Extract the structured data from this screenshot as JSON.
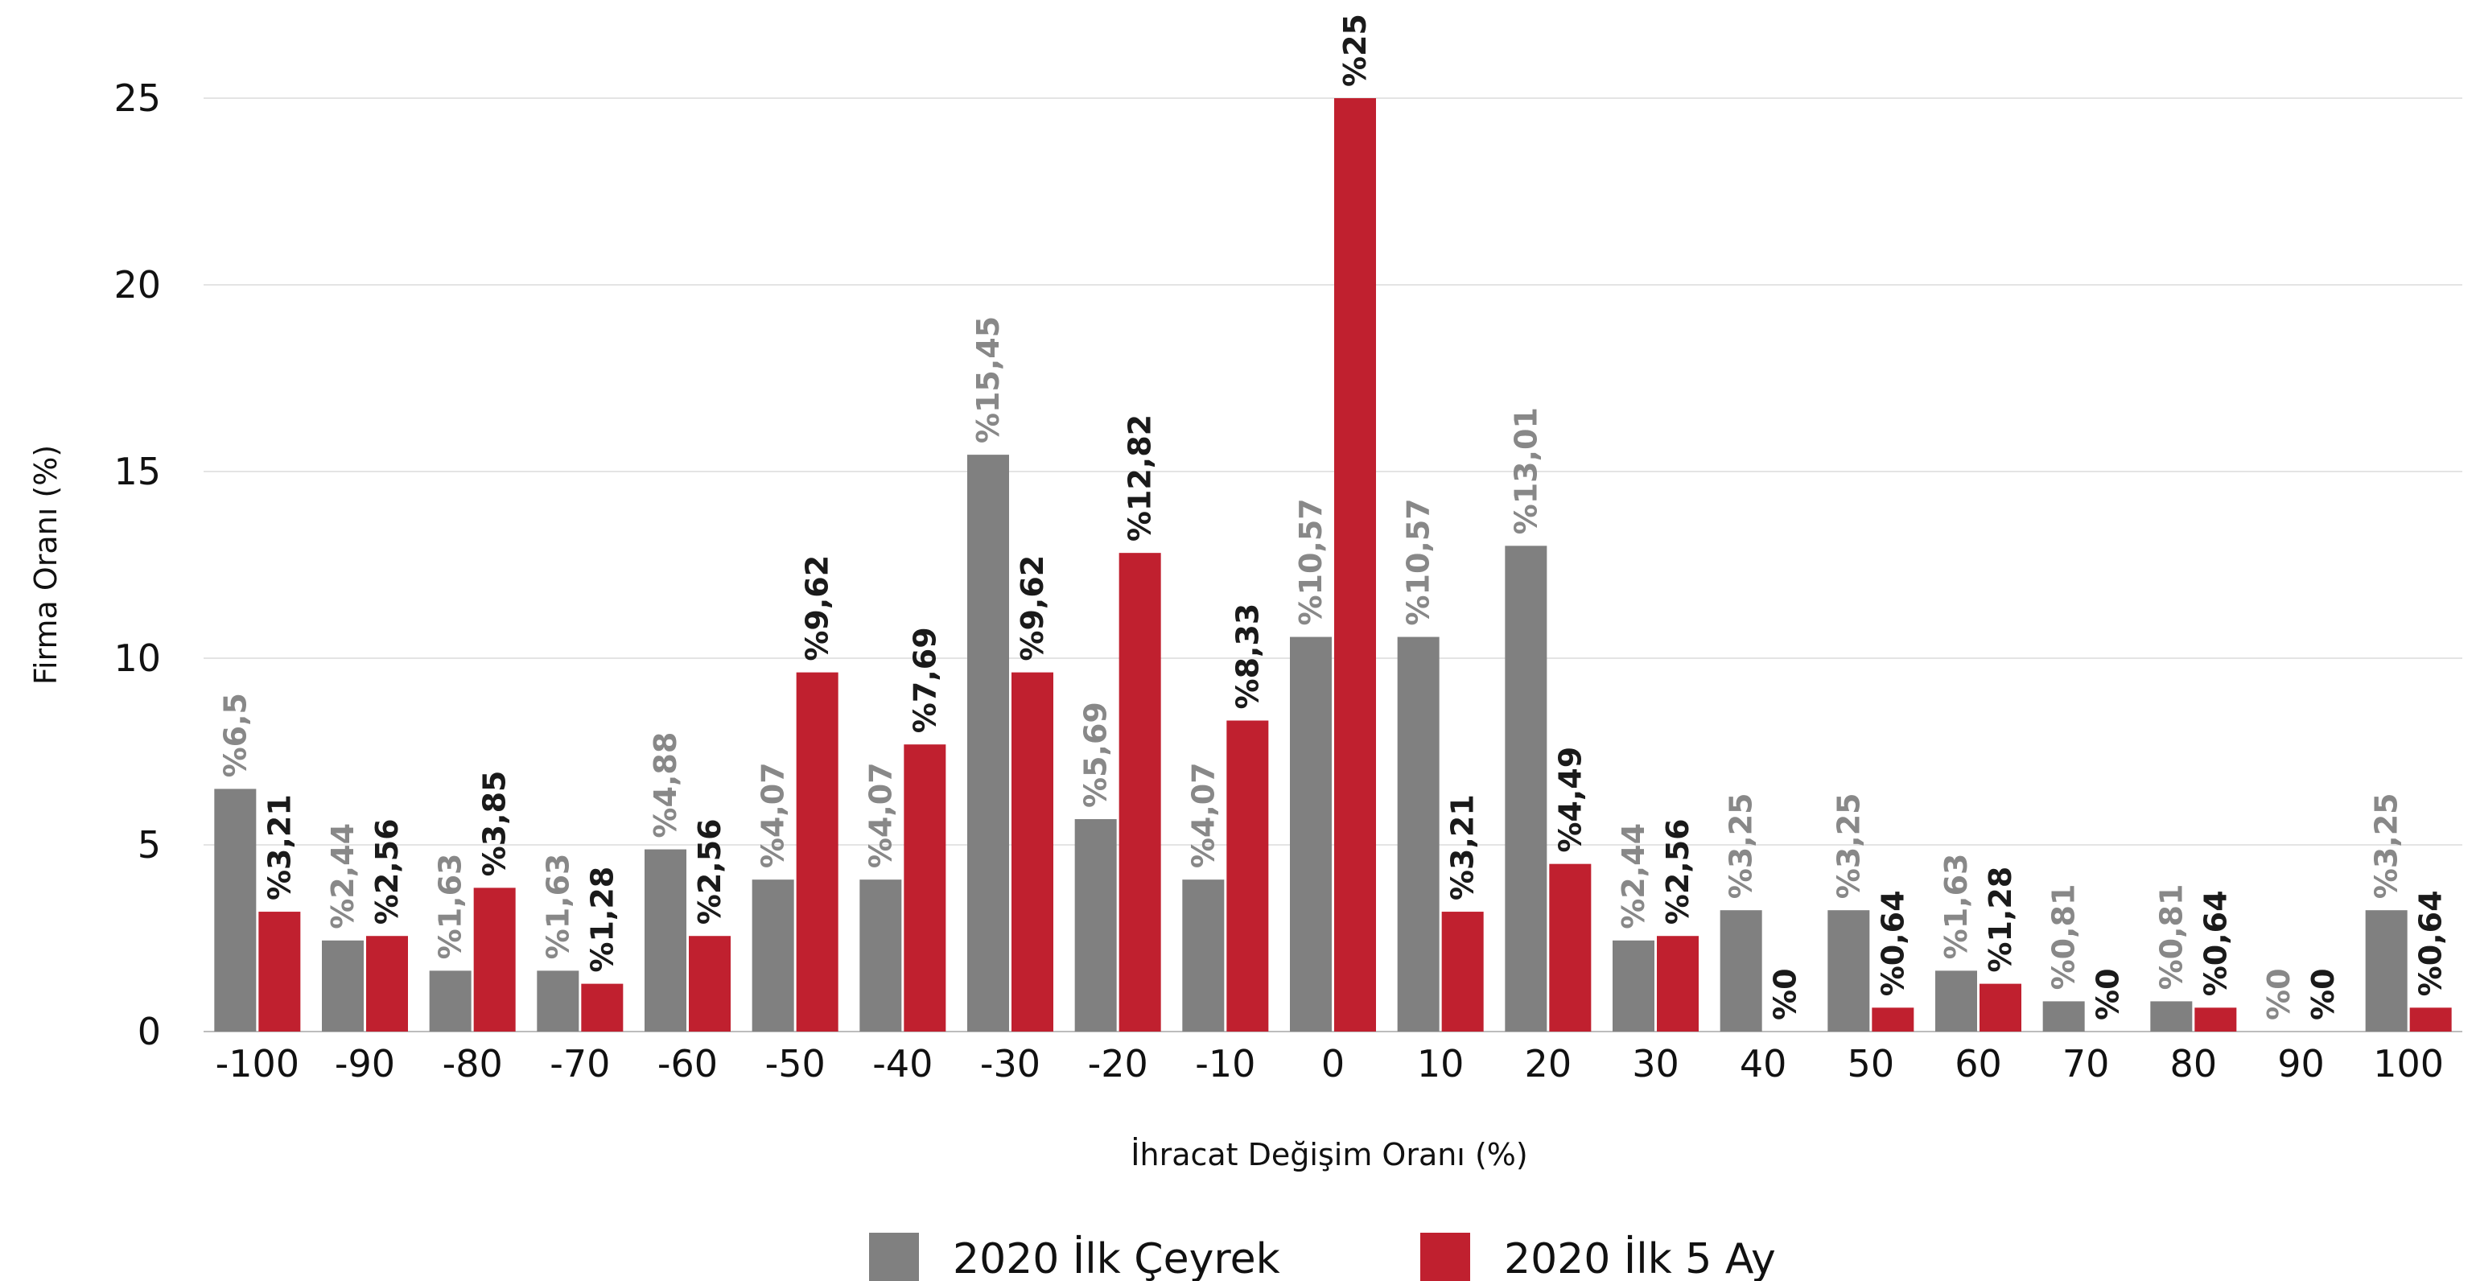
{
  "chart_data": {
    "type": "bar",
    "title": "",
    "xlabel": "İhracat Değişim Oranı (%)",
    "ylabel": "Firma Oranı (%)",
    "ylim": [
      0,
      25
    ],
    "yticks": [
      "0",
      "5",
      "10",
      "15",
      "20",
      "25"
    ],
    "grid": true,
    "legend_position": "bottom-center",
    "categories": [
      "-100",
      "-90",
      "-80",
      "-70",
      "-60",
      "-50",
      "-40",
      "-30",
      "-20",
      "-10",
      "0",
      "10",
      "20",
      "30",
      "40",
      "50",
      "60",
      "70",
      "80",
      "90",
      "100"
    ],
    "series": [
      {
        "name": "2020 İlk Çeyrek",
        "color": "#808080",
        "label_color": "#888888",
        "values": [
          6.5,
          2.44,
          1.63,
          1.63,
          4.88,
          4.07,
          4.07,
          15.45,
          5.69,
          4.07,
          10.57,
          10.57,
          13.01,
          2.44,
          3.25,
          3.25,
          1.63,
          0.81,
          0.81,
          0,
          3.25
        ],
        "labels": [
          "%6,5",
          "%2,44",
          "%1,63",
          "%1,63",
          "%4,88",
          "%4,07",
          "%4,07",
          "%15,45",
          "%5,69",
          "%4,07",
          "%10,57",
          "%10,57",
          "%13,01",
          "%2,44",
          "%3,25",
          "%3,25",
          "%1,63",
          "%0,81",
          "%0,81",
          "%0",
          "%3,25"
        ]
      },
      {
        "name": "2020 İlk 5 Ay",
        "color": "#c0202f",
        "label_color": "#1a1a1a",
        "values": [
          3.21,
          2.56,
          3.85,
          1.28,
          2.56,
          9.62,
          7.69,
          9.62,
          12.82,
          8.33,
          25,
          3.21,
          4.49,
          2.56,
          0,
          0.64,
          1.28,
          0,
          0.64,
          0,
          0.64
        ],
        "labels": [
          "%3,21",
          "%2,56",
          "%3,85",
          "%1,28",
          "%2,56",
          "%9,62",
          "%7,69",
          "%9,62",
          "%12,82",
          "%8,33",
          "%25",
          "%3,21",
          "%4,49",
          "%2,56",
          "%0",
          "%0,64",
          "%1,28",
          "%0",
          "%0,64",
          "%0",
          "%0,64"
        ]
      }
    ]
  }
}
